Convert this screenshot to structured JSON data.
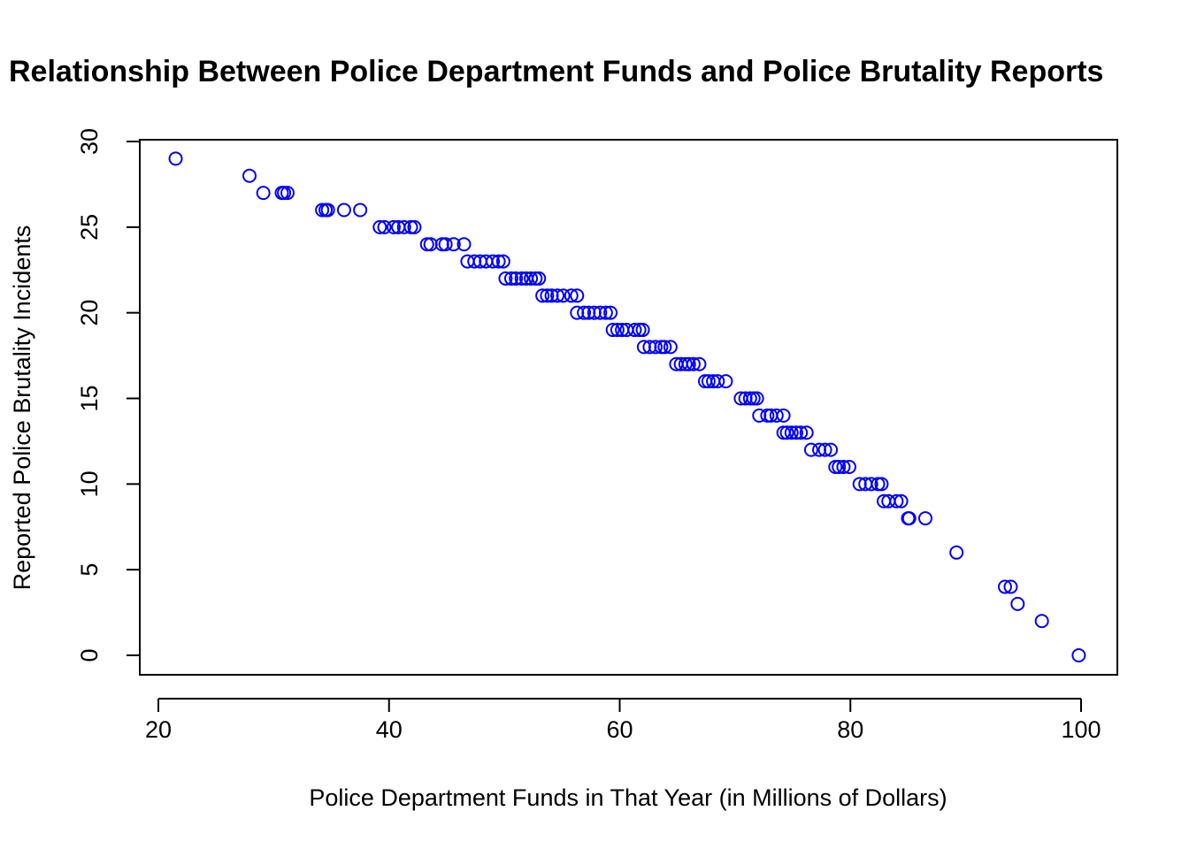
{
  "chart_data": {
    "type": "scatter",
    "title": "Relationship Between Police Department Funds and Police Brutality Reports",
    "xlabel": "Police Department Funds in That Year (in Millions of Dollars)",
    "ylabel": "Reported Police Brutality Incidents",
    "xlim": [
      20,
      100
    ],
    "ylim": [
      0,
      30
    ],
    "x_ticks": [
      "20",
      "40",
      "60",
      "80",
      "100"
    ],
    "y_ticks": [
      "0",
      "5",
      "10",
      "15",
      "20",
      "25",
      "30"
    ],
    "marker": "open-circle",
    "color": "#0000ff",
    "grid": false,
    "legend": "none",
    "points": [
      [
        21.5,
        29
      ],
      [
        27.9,
        28
      ],
      [
        29.1,
        27
      ],
      [
        30.7,
        27
      ],
      [
        30.9,
        27
      ],
      [
        31.2,
        27
      ],
      [
        34.2,
        26
      ],
      [
        34.5,
        26
      ],
      [
        34.7,
        26
      ],
      [
        36.1,
        26
      ],
      [
        37.5,
        26
      ],
      [
        39.2,
        25
      ],
      [
        39.6,
        25
      ],
      [
        40.4,
        25
      ],
      [
        40.8,
        25
      ],
      [
        41.3,
        25
      ],
      [
        41.9,
        25
      ],
      [
        42.2,
        25
      ],
      [
        43.3,
        24
      ],
      [
        43.6,
        24
      ],
      [
        44.6,
        24
      ],
      [
        44.9,
        24
      ],
      [
        45.6,
        24
      ],
      [
        46.5,
        24
      ],
      [
        46.8,
        23
      ],
      [
        47.4,
        23
      ],
      [
        47.9,
        23
      ],
      [
        48.4,
        23
      ],
      [
        49.0,
        23
      ],
      [
        49.5,
        23
      ],
      [
        49.9,
        23
      ],
      [
        50.1,
        22
      ],
      [
        50.6,
        22
      ],
      [
        51.0,
        22
      ],
      [
        51.5,
        22
      ],
      [
        51.9,
        22
      ],
      [
        52.3,
        22
      ],
      [
        52.7,
        22
      ],
      [
        53.0,
        22
      ],
      [
        53.3,
        21
      ],
      [
        53.7,
        21
      ],
      [
        54.1,
        21
      ],
      [
        54.6,
        21
      ],
      [
        55.1,
        21
      ],
      [
        55.8,
        21
      ],
      [
        56.3,
        21
      ],
      [
        56.3,
        20
      ],
      [
        56.9,
        20
      ],
      [
        57.3,
        20
      ],
      [
        57.8,
        20
      ],
      [
        58.3,
        20
      ],
      [
        58.8,
        20
      ],
      [
        59.2,
        20
      ],
      [
        59.4,
        19
      ],
      [
        59.8,
        19
      ],
      [
        60.2,
        19
      ],
      [
        60.6,
        19
      ],
      [
        61.3,
        19
      ],
      [
        61.7,
        19
      ],
      [
        62.0,
        19
      ],
      [
        62.1,
        18
      ],
      [
        62.6,
        18
      ],
      [
        63.1,
        18
      ],
      [
        63.6,
        18
      ],
      [
        63.9,
        18
      ],
      [
        64.4,
        18
      ],
      [
        64.9,
        17
      ],
      [
        65.3,
        17
      ],
      [
        65.7,
        17
      ],
      [
        66.0,
        17
      ],
      [
        66.4,
        17
      ],
      [
        66.9,
        17
      ],
      [
        67.4,
        16
      ],
      [
        67.7,
        16
      ],
      [
        68.1,
        16
      ],
      [
        68.5,
        16
      ],
      [
        69.2,
        16
      ],
      [
        70.5,
        15
      ],
      [
        70.9,
        15
      ],
      [
        71.3,
        15
      ],
      [
        71.6,
        15
      ],
      [
        71.9,
        15
      ],
      [
        72.1,
        14
      ],
      [
        72.8,
        14
      ],
      [
        73.1,
        14
      ],
      [
        73.6,
        14
      ],
      [
        74.2,
        14
      ],
      [
        74.2,
        13
      ],
      [
        74.5,
        13
      ],
      [
        74.9,
        13
      ],
      [
        75.3,
        13
      ],
      [
        75.7,
        13
      ],
      [
        76.2,
        13
      ],
      [
        76.6,
        12
      ],
      [
        77.3,
        12
      ],
      [
        77.8,
        12
      ],
      [
        78.3,
        12
      ],
      [
        78.7,
        11
      ],
      [
        79.0,
        11
      ],
      [
        79.4,
        11
      ],
      [
        79.9,
        11
      ],
      [
        80.8,
        10
      ],
      [
        81.3,
        10
      ],
      [
        81.8,
        10
      ],
      [
        82.4,
        10
      ],
      [
        82.7,
        10
      ],
      [
        82.9,
        9
      ],
      [
        83.3,
        9
      ],
      [
        84.0,
        9
      ],
      [
        84.4,
        9
      ],
      [
        85.0,
        8
      ],
      [
        85.1,
        8
      ],
      [
        86.5,
        8
      ],
      [
        89.2,
        6
      ],
      [
        93.4,
        4
      ],
      [
        93.9,
        4
      ],
      [
        94.5,
        3
      ],
      [
        96.6,
        2
      ],
      [
        99.8,
        0
      ]
    ]
  }
}
